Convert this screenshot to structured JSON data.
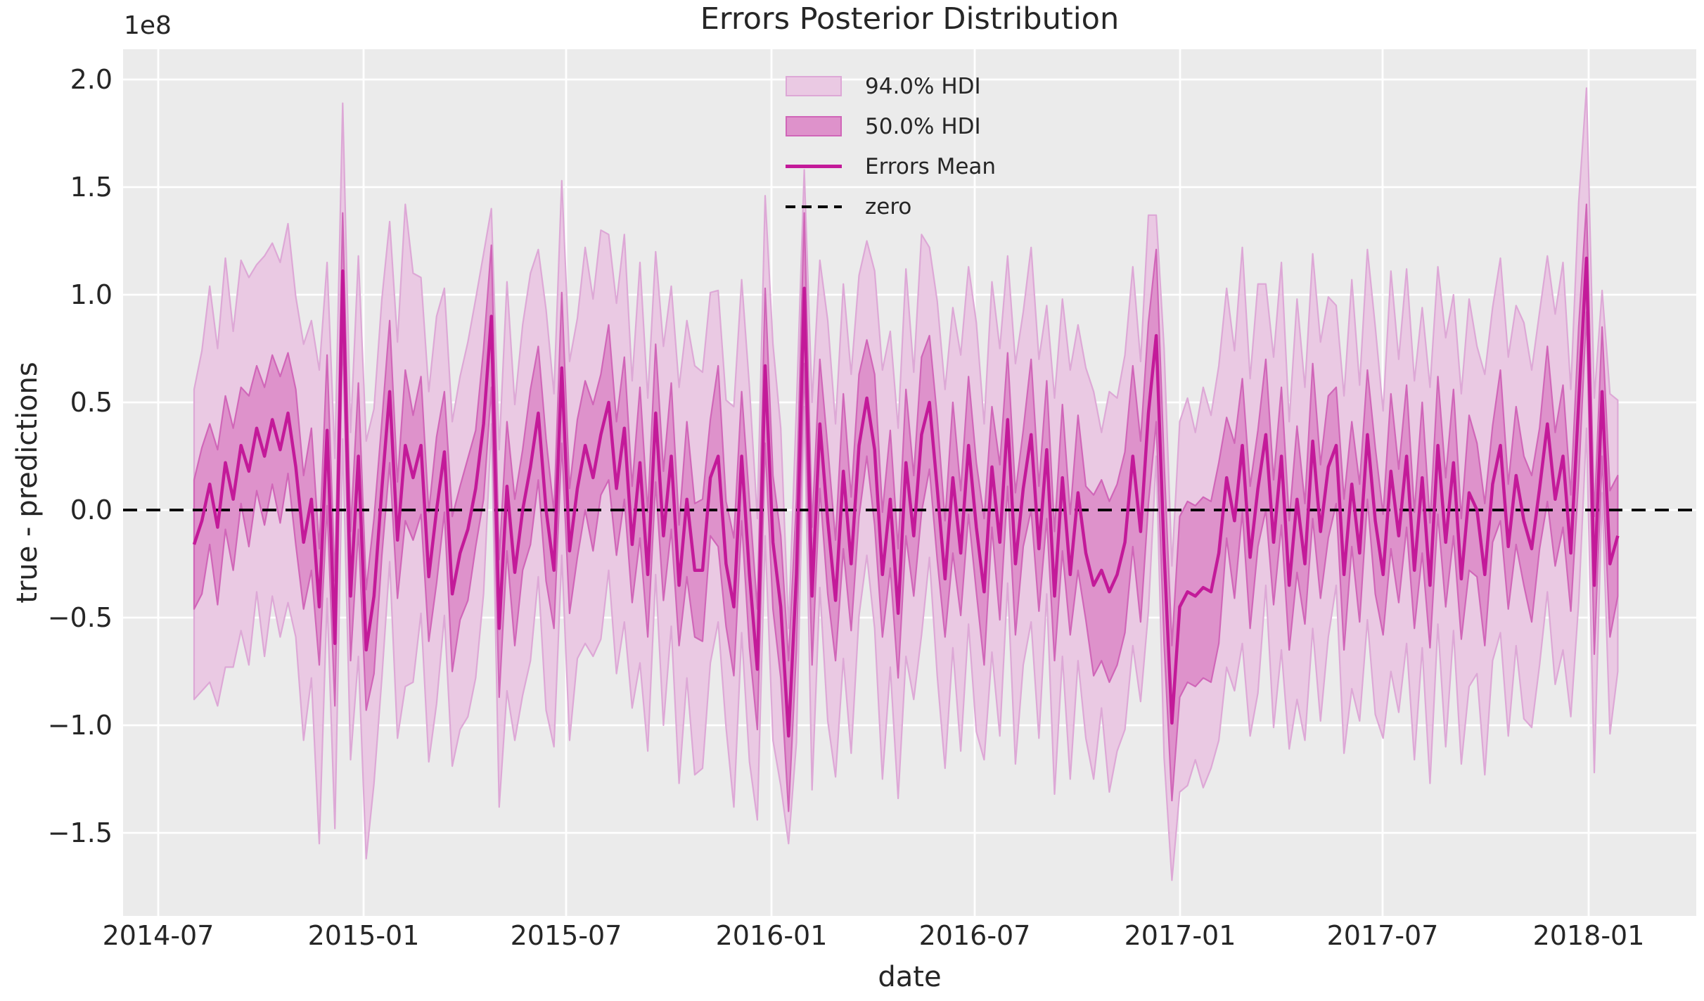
{
  "chart_data": {
    "type": "line_with_hdi_bands",
    "title": "Errors Posterior Distribution",
    "xlabel": "date",
    "ylabel": "true - predictions",
    "y_offset_label": "1e8",
    "grid": true,
    "x_tick_labels": [
      "2014-07",
      "2015-01",
      "2015-07",
      "2016-01",
      "2016-07",
      "2017-01",
      "2017-07",
      "2018-01"
    ],
    "y_tick_values": [
      2.0,
      1.5,
      1.0,
      0.5,
      0.0,
      -0.5,
      -1.0,
      -1.5
    ],
    "ylim": [
      -1.886,
      2.147
    ],
    "xlim": [
      "2014-06-02",
      "2018-04-07"
    ],
    "legend": [
      {
        "label": "94.0% HDI",
        "type": "patch"
      },
      {
        "label": "50.0% HDI",
        "type": "patch"
      },
      {
        "label": "Errors Mean",
        "type": "line"
      },
      {
        "label": "zero",
        "type": "dashed-line"
      }
    ],
    "zero_reference_value": 0,
    "series": {
      "name": "Errors Mean",
      "units": "1e8",
      "x_start_date": "2014-08-03",
      "x_step_days": 7,
      "n_points": 183,
      "mean": [
        -0.16,
        -0.05,
        0.12,
        -0.08,
        0.22,
        0.05,
        0.3,
        0.18,
        0.38,
        0.25,
        0.42,
        0.28,
        0.45,
        0.2,
        -0.15,
        0.05,
        -0.45,
        0.37,
        -0.62,
        1.11,
        -0.4,
        0.25,
        -0.65,
        -0.4,
        0.1,
        0.55,
        -0.14,
        0.3,
        0.15,
        0.3,
        -0.31,
        0.0,
        0.27,
        -0.39,
        -0.2,
        -0.09,
        0.1,
        0.4,
        0.9,
        -0.55,
        0.11,
        -0.29,
        0.0,
        0.2,
        0.45,
        0.0,
        -0.28,
        0.66,
        -0.19,
        0.1,
        0.3,
        0.15,
        0.35,
        0.5,
        0.1,
        0.38,
        -0.16,
        0.22,
        -0.3,
        0.45,
        -0.12,
        0.25,
        -0.35,
        0.05,
        -0.28,
        -0.28,
        0.15,
        0.25,
        -0.25,
        -0.45,
        0.25,
        -0.3,
        -0.74,
        0.67,
        -0.15,
        -0.45,
        -1.05,
        -0.3,
        1.03,
        -0.4,
        0.4,
        -0.05,
        -0.42,
        0.18,
        -0.25,
        0.3,
        0.52,
        0.28,
        -0.3,
        0.05,
        -0.48,
        0.22,
        -0.12,
        0.35,
        0.5,
        0.1,
        -0.32,
        0.15,
        -0.2,
        0.3,
        -0.08,
        -0.38,
        0.2,
        -0.15,
        0.42,
        -0.25,
        0.1,
        0.35,
        -0.18,
        0.28,
        -0.4,
        0.15,
        -0.3,
        0.08,
        -0.2,
        -0.35,
        -0.28,
        -0.38,
        -0.3,
        -0.15,
        0.25,
        -0.1,
        0.45,
        0.81,
        -0.2,
        -0.99,
        -0.45,
        -0.38,
        -0.4,
        -0.36,
        -0.38,
        -0.2,
        0.15,
        -0.05,
        0.3,
        -0.22,
        0.1,
        0.35,
        -0.15,
        0.25,
        -0.35,
        0.05,
        -0.25,
        0.32,
        -0.1,
        0.2,
        0.3,
        -0.3,
        0.12,
        -0.2,
        0.35,
        -0.05,
        -0.3,
        0.18,
        -0.12,
        0.25,
        -0.28,
        0.15,
        -0.35,
        0.3,
        -0.15,
        0.22,
        -0.32,
        0.08,
        0.0,
        -0.3,
        0.12,
        0.3,
        -0.17,
        0.16,
        -0.05,
        -0.18,
        0.1,
        0.4,
        0.05,
        0.25,
        -0.2,
        0.5,
        1.17,
        -0.35,
        0.55,
        -0.25,
        -0.12
      ],
      "hdi50_half_width": [
        0.3,
        0.34,
        0.28,
        0.36,
        0.31,
        0.33,
        0.27,
        0.35,
        0.29,
        0.32,
        0.3,
        0.34,
        0.28,
        0.36,
        0.31,
        0.33,
        0.27,
        0.35,
        0.29,
        0.27,
        0.3,
        0.34,
        0.28,
        0.36,
        0.31,
        0.33,
        0.27,
        0.35,
        0.29,
        0.32,
        0.3,
        0.34,
        0.28,
        0.36,
        0.31,
        0.33,
        0.27,
        0.35,
        0.33,
        0.32,
        0.3,
        0.34,
        0.28,
        0.36,
        0.31,
        0.33,
        0.27,
        0.35,
        0.29,
        0.32,
        0.3,
        0.34,
        0.28,
        0.36,
        0.31,
        0.33,
        0.27,
        0.35,
        0.29,
        0.32,
        0.3,
        0.34,
        0.28,
        0.36,
        0.31,
        0.33,
        0.27,
        0.42,
        0.29,
        0.32,
        0.3,
        0.34,
        0.28,
        0.36,
        0.31,
        0.33,
        0.35,
        0.35,
        0.35,
        0.32,
        0.3,
        0.34,
        0.28,
        0.36,
        0.31,
        0.33,
        0.27,
        0.35,
        0.29,
        0.32,
        0.3,
        0.34,
        0.28,
        0.36,
        0.31,
        0.33,
        0.27,
        0.35,
        0.29,
        0.32,
        0.3,
        0.34,
        0.28,
        0.36,
        0.31,
        0.33,
        0.27,
        0.35,
        0.29,
        0.32,
        0.3,
        0.34,
        0.28,
        0.36,
        0.31,
        0.42,
        0.42,
        0.42,
        0.42,
        0.42,
        0.42,
        0.42,
        0.42,
        0.4,
        0.42,
        0.36,
        0.42,
        0.42,
        0.42,
        0.42,
        0.42,
        0.42,
        0.28,
        0.36,
        0.31,
        0.33,
        0.27,
        0.35,
        0.29,
        0.32,
        0.3,
        0.34,
        0.28,
        0.36,
        0.31,
        0.33,
        0.27,
        0.35,
        0.29,
        0.32,
        0.3,
        0.34,
        0.28,
        0.36,
        0.31,
        0.33,
        0.27,
        0.35,
        0.29,
        0.32,
        0.3,
        0.34,
        0.28,
        0.36,
        0.31,
        0.33,
        0.27,
        0.35,
        0.29,
        0.32,
        0.3,
        0.34,
        0.28,
        0.36,
        0.31,
        0.33,
        0.27,
        0.35,
        0.25,
        0.32,
        0.3,
        0.34,
        0.28
      ],
      "hdi94_half_width": [
        0.72,
        0.79,
        0.92,
        0.83,
        0.95,
        0.78,
        0.86,
        0.9,
        0.76,
        0.93,
        0.82,
        0.87,
        0.88,
        0.79,
        0.92,
        0.83,
        1.1,
        0.78,
        0.86,
        0.78,
        0.76,
        0.93,
        0.97,
        0.87,
        0.88,
        0.79,
        0.92,
        1.12,
        0.95,
        0.78,
        0.86,
        0.9,
        0.76,
        0.8,
        0.82,
        0.87,
        0.88,
        0.79,
        0.5,
        0.83,
        0.95,
        0.78,
        0.86,
        0.9,
        0.76,
        0.93,
        0.82,
        0.87,
        0.88,
        0.79,
        0.92,
        0.83,
        0.95,
        0.78,
        0.86,
        0.9,
        0.76,
        0.93,
        0.82,
        0.75,
        0.88,
        0.79,
        0.92,
        0.83,
        0.95,
        0.92,
        0.86,
        0.77,
        0.76,
        0.93,
        0.82,
        0.87,
        0.7,
        0.79,
        0.92,
        0.83,
        0.5,
        0.78,
        0.55,
        0.9,
        0.76,
        0.93,
        0.82,
        0.87,
        0.88,
        0.79,
        0.73,
        0.83,
        0.95,
        0.78,
        0.86,
        0.9,
        0.76,
        0.93,
        0.72,
        0.87,
        0.88,
        0.79,
        0.92,
        0.83,
        0.95,
        0.78,
        0.86,
        0.9,
        0.76,
        0.93,
        0.82,
        0.87,
        0.88,
        0.67,
        0.92,
        0.83,
        0.95,
        0.78,
        0.86,
        0.9,
        0.64,
        0.93,
        0.82,
        0.87,
        0.88,
        0.79,
        0.92,
        0.56,
        0.95,
        0.73,
        0.86,
        0.9,
        0.76,
        0.93,
        0.82,
        0.87,
        0.88,
        0.79,
        0.92,
        0.83,
        0.95,
        0.7,
        0.86,
        0.9,
        0.76,
        0.93,
        0.82,
        0.87,
        0.88,
        0.79,
        0.65,
        0.83,
        0.95,
        0.78,
        0.86,
        0.9,
        0.76,
        0.93,
        0.82,
        0.87,
        0.88,
        0.79,
        0.92,
        0.83,
        0.95,
        0.78,
        0.86,
        0.9,
        0.76,
        0.93,
        0.82,
        0.87,
        0.88,
        0.79,
        0.92,
        0.83,
        0.82,
        0.78,
        0.86,
        0.9,
        0.76,
        0.93,
        0.79,
        0.87,
        0.47,
        0.79,
        0.63
      ]
    },
    "colors": {
      "hdi94_fill": "#eac9e3",
      "hdi94_edge": "#dda8d6",
      "hdi50_fill": "#de92cb",
      "hdi50_edge": "#d066b8",
      "mean_line": "#c31a99",
      "zero_line": "#000000",
      "plot_bg": "#ebebeb",
      "grid": "#ffffff",
      "text": "#262626"
    },
    "legend_position": "upper-center"
  }
}
